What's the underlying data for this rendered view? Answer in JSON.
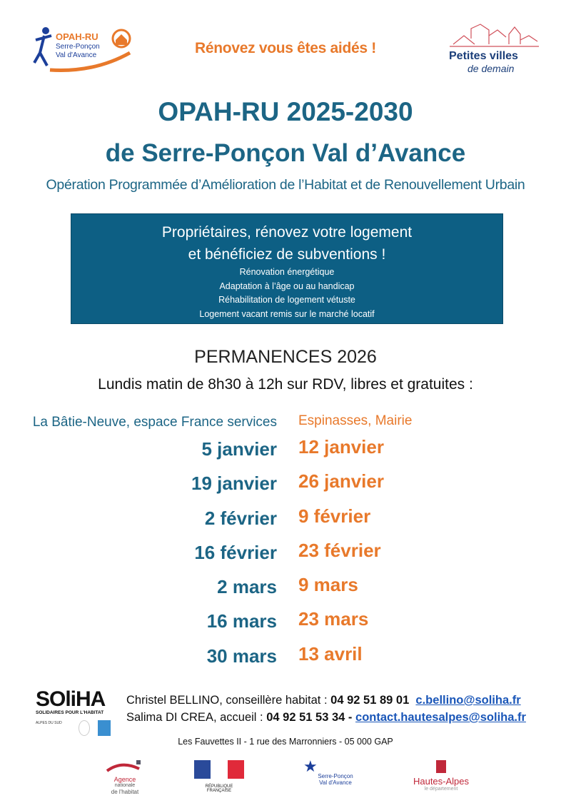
{
  "header": {
    "logo_opah": {
      "title": "OPAH-RU",
      "line1": "Serre-Ponçon",
      "line2": "Val d'Avance"
    },
    "tagline": "Rénovez vous êtes aidés !",
    "logo_pvd": {
      "line1": "Petites villes",
      "line2": "de demain"
    }
  },
  "title": {
    "line1": "OPAH-RU 2025-2030",
    "line2": "de Serre-Ponçon Val d’Avance",
    "subtitle": "Opération Programmée d’Amélioration de l’Habitat et de Renouvellement Urbain"
  },
  "box": {
    "line1": "Propriétaires, rénovez votre logement",
    "line2": "et bénéficiez de subventions !",
    "items": [
      "Rénovation énergétique",
      "Adaptation à l’âge ou au handicap",
      "Réhabilitation de logement vétuste",
      "Logement vacant remis sur le marché locatif"
    ]
  },
  "permanences": {
    "title": "PERMANENCES 2026",
    "hours": "Lundis matin de 8h30 à 12h sur RDV, libres et gratuites :",
    "left": {
      "location": "La Bâtie-Neuve, espace France services",
      "dates": [
        "5 janvier",
        "19 janvier",
        "2 février",
        "16 février",
        "2 mars",
        "16 mars",
        "30 mars"
      ]
    },
    "right": {
      "location": "Espinasses, Mairie",
      "dates": [
        "12 janvier",
        "26 janvier",
        "9 février",
        "23 février",
        "9 mars",
        "23 mars",
        "13 avril"
      ]
    }
  },
  "contacts": {
    "soliha": {
      "name": "SOliHA",
      "sub": "SOLIDAIRES POUR L'HABITAT",
      "region": "ALPES DU SUD"
    },
    "c1": {
      "label": "Christel BELLINO, conseillère habitat : ",
      "phone": "04 92 51 89 01",
      "email": "c.bellino@soliha.fr"
    },
    "c2": {
      "label": "Salima DI CREA, accueil : ",
      "phone": "04 92 51 53 34 -",
      "email": "contact.hautesalpes@soliha.fr"
    },
    "address": "Les Fauvettes II - 1 rue des Marronniers - 05 000 GAP"
  },
  "partners": {
    "anah": [
      "Agence",
      "nationale",
      "de l'habitat"
    ],
    "rf": "RÉPUBLIQUE FRANÇAISE",
    "spva": [
      "Serre-Ponçon",
      "Val d'Avance"
    ],
    "ha": [
      "Hautes-Alpes",
      "le département"
    ]
  },
  "colors": {
    "blue": "#1c6585",
    "orange": "#e8792b",
    "box": "#0d5f84",
    "link": "#1a56b8"
  }
}
